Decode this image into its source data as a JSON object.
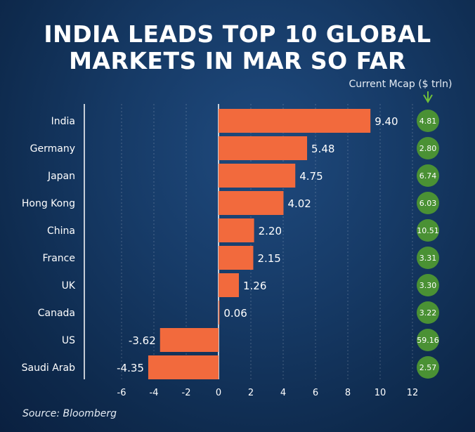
{
  "title_line1": "INDIA LEADS TOP 10 GLOBAL",
  "title_line2": "MARKETS IN MAR SO FAR",
  "mcap_header": "Current Mcap ($ trln)",
  "source": "Source: Bloomberg",
  "colors": {
    "bar": "#f26a3d",
    "circle": "#4a9134",
    "arrow": "#6fbf3a"
  },
  "chart_data": {
    "type": "bar",
    "orientation": "horizontal",
    "title": "INDIA LEADS TOP 10 GLOBAL MARKETS IN MAR SO FAR",
    "categories": [
      "India",
      "Germany",
      "Japan",
      "Hong Kong",
      "China",
      "France",
      "UK",
      "Canada",
      "US",
      "Saudi Arab"
    ],
    "values": [
      9.4,
      5.48,
      4.75,
      4.02,
      2.2,
      2.15,
      1.26,
      0.06,
      -3.62,
      -4.35
    ],
    "value_labels": [
      "9.40",
      "5.48",
      "4.75",
      "4.02",
      "2.20",
      "2.15",
      "1.26",
      "0.06",
      "-3.62",
      "-4.35"
    ],
    "current_mcap_labels": [
      "4.81",
      "2.80",
      "6.74",
      "6.03",
      "10.51",
      "3.31",
      "3.30",
      "3.22",
      "59.16",
      "2.57"
    ],
    "xticks": [
      -6,
      -4,
      -2,
      0,
      2,
      4,
      6,
      8,
      10,
      12
    ],
    "xlim": [
      -6.5,
      12.5
    ],
    "grid": "vertical"
  }
}
